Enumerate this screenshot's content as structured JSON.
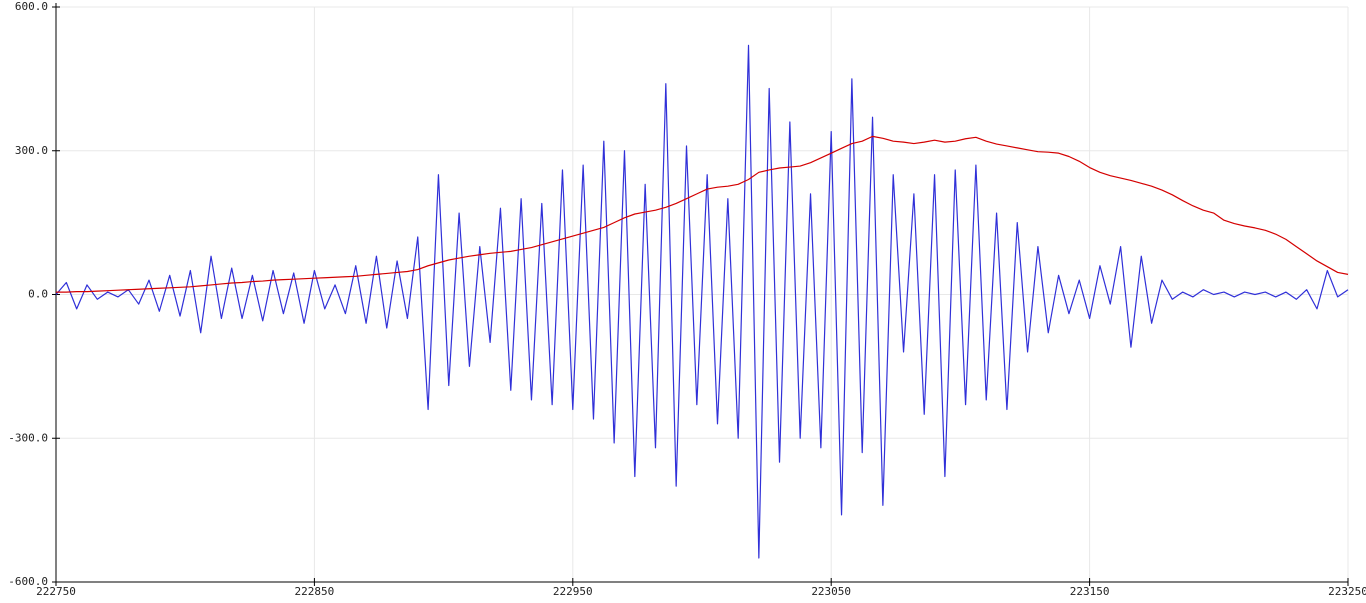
{
  "chart_data": {
    "type": "line",
    "xlim": [
      222750,
      223250
    ],
    "xticks": [
      222750,
      222850,
      222950,
      223050,
      223150,
      223250
    ],
    "ylim": [
      -600,
      600
    ],
    "yticks": [
      {
        "value": -600,
        "label": "-600.0"
      },
      {
        "value": -300,
        "label": "-300.0"
      },
      {
        "value": 0,
        "label": "0.0"
      },
      {
        "value": 300,
        "label": "300.0"
      },
      {
        "value": 600,
        "label": "600.0"
      }
    ],
    "grid": true,
    "x": [
      222750,
      222754,
      222758,
      222762,
      222766,
      222770,
      222774,
      222778,
      222782,
      222786,
      222790,
      222794,
      222798,
      222802,
      222806,
      222810,
      222814,
      222818,
      222822,
      222826,
      222830,
      222834,
      222838,
      222842,
      222846,
      222850,
      222854,
      222858,
      222862,
      222866,
      222870,
      222874,
      222878,
      222882,
      222886,
      222890,
      222894,
      222898,
      222902,
      222906,
      222910,
      222914,
      222918,
      222922,
      222926,
      222930,
      222934,
      222938,
      222942,
      222946,
      222950,
      222954,
      222958,
      222962,
      222966,
      222970,
      222974,
      222978,
      222982,
      222986,
      222990,
      222994,
      222998,
      223002,
      223006,
      223010,
      223014,
      223018,
      223022,
      223026,
      223030,
      223034,
      223038,
      223042,
      223046,
      223050,
      223054,
      223058,
      223062,
      223066,
      223070,
      223074,
      223078,
      223082,
      223086,
      223090,
      223094,
      223098,
      223102,
      223106,
      223110,
      223114,
      223118,
      223122,
      223126,
      223130,
      223134,
      223138,
      223142,
      223146,
      223150,
      223154,
      223158,
      223162,
      223166,
      223170,
      223174,
      223178,
      223182,
      223186,
      223190,
      223194,
      223198,
      223202,
      223206,
      223210,
      223214,
      223218,
      223222,
      223226,
      223230,
      223234,
      223238,
      223242,
      223246,
      223250
    ],
    "series": [
      {
        "color": "#3030d8",
        "values": [
          0,
          25,
          -30,
          20,
          -10,
          5,
          -5,
          10,
          -20,
          30,
          -35,
          40,
          -45,
          50,
          -80,
          80,
          -50,
          55,
          -50,
          40,
          -55,
          50,
          -40,
          45,
          -60,
          50,
          -30,
          20,
          -40,
          60,
          -60,
          80,
          -70,
          70,
          -50,
          120,
          -240,
          250,
          -190,
          170,
          -150,
          100,
          -100,
          180,
          -200,
          200,
          -220,
          190,
          -230,
          260,
          -240,
          270,
          -260,
          320,
          -310,
          300,
          -380,
          230,
          -320,
          440,
          -400,
          310,
          -230,
          250,
          -270,
          200,
          -300,
          520,
          -550,
          430,
          -350,
          360,
          -300,
          210,
          -320,
          340,
          -460,
          450,
          -330,
          370,
          -440,
          250,
          -120,
          210,
          -250,
          250,
          -380,
          260,
          -230,
          270,
          -220,
          170,
          -240,
          150,
          -120,
          100,
          -80,
          40,
          -40,
          30,
          -50,
          60,
          -20,
          100,
          -110,
          80,
          -60,
          30,
          -10,
          5,
          -5,
          10,
          0,
          5,
          -5,
          5,
          0,
          5,
          -5,
          5,
          -10,
          10,
          -30,
          50,
          -5,
          10
        ]
      },
      {
        "color": "#d40000",
        "values": [
          5,
          5,
          6,
          6,
          7,
          8,
          9,
          10,
          11,
          12,
          13,
          14,
          15,
          16,
          18,
          20,
          22,
          24,
          25,
          27,
          28,
          30,
          31,
          32,
          33,
          34,
          35,
          36,
          37,
          38,
          40,
          42,
          44,
          46,
          48,
          52,
          60,
          66,
          72,
          76,
          80,
          83,
          86,
          88,
          90,
          94,
          98,
          104,
          110,
          116,
          122,
          128,
          134,
          140,
          150,
          160,
          168,
          172,
          176,
          182,
          190,
          200,
          210,
          220,
          224,
          226,
          230,
          240,
          255,
          260,
          264,
          266,
          268,
          275,
          285,
          295,
          305,
          315,
          320,
          330,
          326,
          320,
          318,
          315,
          318,
          322,
          318,
          320,
          325,
          328,
          320,
          314,
          310,
          306,
          302,
          298,
          297,
          295,
          288,
          278,
          265,
          255,
          248,
          243,
          238,
          232,
          226,
          218,
          208,
          196,
          185,
          176,
          170,
          155,
          148,
          143,
          139,
          134,
          126,
          115,
          100,
          85,
          70,
          58,
          46,
          42
        ]
      }
    ]
  }
}
